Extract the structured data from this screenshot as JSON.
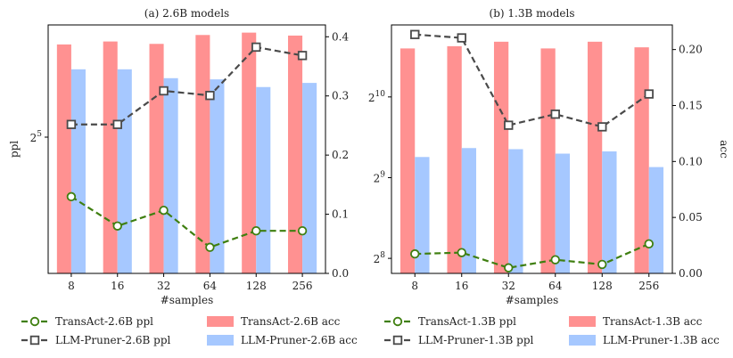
{
  "chart_data": [
    {
      "type": "bar+line",
      "title": "(a) 2.6B models",
      "xlabel": "#samples",
      "ylabel_left": "ppl",
      "ylabel_right": "",
      "categories": [
        "8",
        "16",
        "32",
        "64",
        "128",
        "256"
      ],
      "left_axis": {
        "scale": "log2",
        "ylim": [
          23,
          42
        ],
        "ticks": [
          {
            "value": 32,
            "base": "2",
            "exp": "5"
          }
        ]
      },
      "right_axis": {
        "ylim": [
          0.0,
          0.42
        ],
        "ticks": [
          {
            "value": 0.0,
            "label": "0.0"
          },
          {
            "value": 0.1,
            "label": "0.1"
          },
          {
            "value": 0.2,
            "label": "0.2"
          },
          {
            "value": 0.3,
            "label": "0.3"
          },
          {
            "value": 0.4,
            "label": "0.4"
          }
        ]
      },
      "bars": [
        {
          "name": "TransAct-2.6B acc",
          "color": "#ff9191",
          "values": [
            0.387,
            0.392,
            0.388,
            0.403,
            0.407,
            0.402
          ]
        },
        {
          "name": "LLM-Pruner-2.6B acc",
          "color": "#a6c8ff",
          "values": [
            0.345,
            0.345,
            0.33,
            0.328,
            0.315,
            0.322
          ]
        }
      ],
      "lines": [
        {
          "name": "TransAct-2.6B ppl",
          "color": "#3f7f10",
          "marker": "circle",
          "values": [
            27.7,
            25.8,
            26.8,
            24.5,
            25.5,
            25.5
          ]
        },
        {
          "name": "LLM-Pruner-2.6B ppl",
          "color": "#4a4a4a",
          "marker": "square",
          "values": [
            33.0,
            33.0,
            35.8,
            35.4,
            39.8,
            39.0
          ]
        }
      ]
    },
    {
      "type": "bar+line",
      "title": "(b) 1.3B models",
      "xlabel": "#samples",
      "ylabel_left": "",
      "ylabel_right": "acc",
      "categories": [
        "8",
        "16",
        "32",
        "64",
        "128",
        "256"
      ],
      "left_axis": {
        "scale": "log2",
        "ylim": [
          225,
          1900
        ],
        "ticks": [
          {
            "value": 256,
            "base": "2",
            "exp": "8"
          },
          {
            "value": 512,
            "base": "2",
            "exp": "9"
          },
          {
            "value": 1024,
            "base": "2",
            "exp": "10"
          }
        ]
      },
      "right_axis": {
        "ylim": [
          0.0,
          0.222
        ],
        "ticks": [
          {
            "value": 0.0,
            "label": "0.00"
          },
          {
            "value": 0.05,
            "label": "0.05"
          },
          {
            "value": 0.1,
            "label": "0.10"
          },
          {
            "value": 0.15,
            "label": "0.15"
          },
          {
            "value": 0.2,
            "label": "0.20"
          }
        ]
      },
      "bars": [
        {
          "name": "TransAct-1.3B acc",
          "color": "#ff9191",
          "values": [
            0.201,
            0.203,
            0.207,
            0.201,
            0.207,
            0.202
          ]
        },
        {
          "name": "LLM-Pruner-1.3B acc",
          "color": "#a6c8ff",
          "values": [
            0.104,
            0.112,
            0.111,
            0.107,
            0.109,
            0.095
          ]
        }
      ],
      "lines": [
        {
          "name": "TransAct-1.3B ppl",
          "color": "#3f7f10",
          "marker": "circle",
          "values": [
            266,
            269,
            236,
            253,
            243,
            290
          ]
        },
        {
          "name": "LLM-Pruner-1.3B ppl",
          "color": "#4a4a4a",
          "marker": "square",
          "values": [
            1750,
            1700,
            803,
            883,
            792,
            1050
          ]
        }
      ]
    }
  ]
}
